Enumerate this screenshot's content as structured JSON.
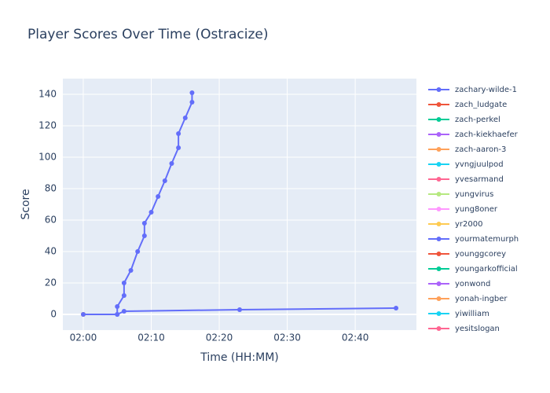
{
  "chart_data": {
    "type": "line",
    "title": "Player Scores Over Time (Ostracize)",
    "x_label": "Time (HH:MM)",
    "y_label": "Score",
    "xlim": [
      "01:57",
      "02:49"
    ],
    "xticks": [
      "02:00",
      "02:10",
      "02:20",
      "02:30",
      "02:40"
    ],
    "ylim": [
      -10,
      150
    ],
    "yticks": [
      0,
      20,
      40,
      60,
      80,
      100,
      120,
      140
    ],
    "grid": true,
    "legend": "right",
    "series": [
      {
        "name": "zachary-wilde-1",
        "color": "#636efa",
        "x": [
          "02:05",
          "02:05",
          "02:06",
          "02:06",
          "02:07",
          "02:08",
          "02:09",
          "02:09",
          "02:10",
          "02:11",
          "02:12",
          "02:13",
          "02:14",
          "02:14",
          "02:15",
          "02:16",
          "02:16"
        ],
        "values": [
          0,
          5,
          12,
          20,
          28,
          40,
          50,
          58,
          65,
          75,
          85,
          96,
          106,
          115,
          125,
          135,
          141
        ]
      },
      {
        "name": "zach_ludgate",
        "color": "#EF553B",
        "x": [],
        "values": []
      },
      {
        "name": "zach-perkel",
        "color": "#00cc96",
        "x": [],
        "values": []
      },
      {
        "name": "zach-kiekhaefer",
        "color": "#ab63fa",
        "x": [],
        "values": []
      },
      {
        "name": "zach-aaron-3",
        "color": "#FFA15A",
        "x": [
          "02:00"
        ],
        "values": [
          0
        ]
      },
      {
        "name": "yvngjuulpod",
        "color": "#19d3f3",
        "x": [],
        "values": []
      },
      {
        "name": "yvesarmand",
        "color": "#FF6692",
        "x": [],
        "values": []
      },
      {
        "name": "yungvirus",
        "color": "#B6E880",
        "x": [],
        "values": []
      },
      {
        "name": "yung8oner",
        "color": "#FF97FF",
        "x": [],
        "values": []
      },
      {
        "name": "yr2000",
        "color": "#FECB52",
        "x": [
          "02:00"
        ],
        "values": [
          0
        ]
      },
      {
        "name": "yourmatemurph",
        "color": "#636efa",
        "x": [
          "02:00",
          "02:05",
          "02:06",
          "02:23",
          "02:46"
        ],
        "values": [
          0,
          0,
          2,
          3,
          4
        ]
      },
      {
        "name": "younggcorey",
        "color": "#EF553B",
        "x": [],
        "values": []
      },
      {
        "name": "youngarkofficial",
        "color": "#00cc96",
        "x": [],
        "values": []
      },
      {
        "name": "yonwond",
        "color": "#ab63fa",
        "x": [],
        "values": []
      },
      {
        "name": "yonah-ingber",
        "color": "#FFA15A",
        "x": [],
        "values": []
      },
      {
        "name": "yiwilliam",
        "color": "#19d3f3",
        "x": [],
        "values": []
      },
      {
        "name": "yesitslogan",
        "color": "#FF6692",
        "x": [],
        "values": []
      }
    ]
  }
}
